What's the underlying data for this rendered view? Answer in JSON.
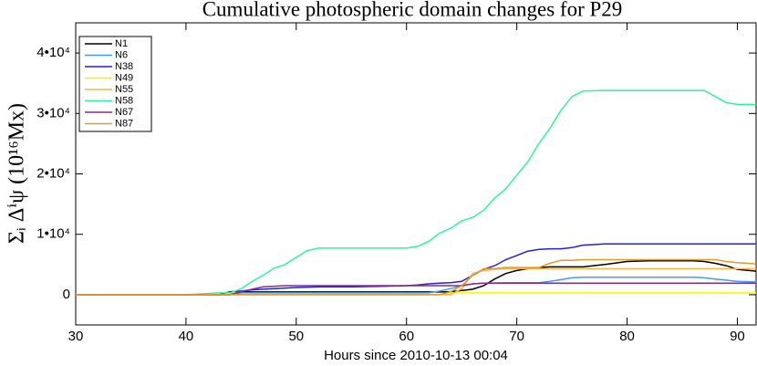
{
  "chart_data": {
    "type": "line",
    "title": "Cumulative photospheric domain changes for P29",
    "x_label": "Hours since 2010-10-13 00:04",
    "y_label": "Σᵢ Δⁱψ  (10¹⁶Mx)",
    "xlim": [
      30,
      91.7
    ],
    "ylim": [
      -5000,
      45000
    ],
    "xticks": [
      30,
      40,
      50,
      60,
      70,
      80,
      90
    ],
    "yticks": [
      {
        "value": 0,
        "label": "0"
      },
      {
        "value": 10000,
        "label": "1•10⁴"
      },
      {
        "value": 20000,
        "label": "2•10⁴"
      },
      {
        "value": 30000,
        "label": "3•10⁴"
      },
      {
        "value": 40000,
        "label": "4•10⁴"
      }
    ],
    "legend": "upper left",
    "x": [
      30,
      40,
      43,
      44,
      45,
      46,
      47,
      48,
      49,
      50,
      51,
      52,
      55,
      58,
      60,
      61,
      62,
      63,
      64,
      65,
      66,
      67,
      68,
      69,
      70,
      71,
      72,
      73,
      74,
      75,
      76,
      78,
      80,
      82,
      84,
      86,
      87,
      88,
      89,
      90,
      91.7
    ],
    "series": [
      {
        "name": "N1",
        "color": "#000000",
        "values": [
          0,
          0,
          0,
          0,
          500,
          450,
          450,
          450,
          450,
          450,
          450,
          450,
          450,
          450,
          450,
          450,
          450,
          450,
          500,
          700,
          900,
          1500,
          2600,
          3500,
          4000,
          4300,
          4500,
          4600,
          4600,
          4600,
          4600,
          5000,
          5500,
          5600,
          5600,
          5600,
          5500,
          5200,
          4800,
          4200,
          3900
        ]
      },
      {
        "name": "N6",
        "color": "#3a9cff",
        "values": [
          0,
          0,
          0,
          0,
          300,
          300,
          300,
          300,
          300,
          300,
          300,
          300,
          300,
          300,
          300,
          300,
          300,
          600,
          1000,
          1500,
          1800,
          1900,
          1950,
          2000,
          2000,
          2000,
          2000,
          2200,
          2500,
          2800,
          2900,
          2900,
          2900,
          2900,
          2900,
          2900,
          2800,
          2600,
          2400,
          2200,
          2100
        ]
      },
      {
        "name": "N38",
        "color": "#2020e0",
        "values": [
          0,
          0,
          0,
          500,
          600,
          800,
          900,
          1000,
          1100,
          1200,
          1250,
          1300,
          1300,
          1400,
          1500,
          1600,
          1800,
          1900,
          2000,
          2200,
          3200,
          4200,
          4800,
          5800,
          6500,
          7200,
          7500,
          7600,
          7600,
          7800,
          8200,
          8400,
          8400,
          8400,
          8400,
          8400,
          8400,
          8400,
          8400,
          8400,
          8400
        ]
      },
      {
        "name": "N49",
        "color": "#f5f500",
        "values": [
          0,
          0,
          0,
          0,
          0,
          0,
          0,
          0,
          0,
          0,
          0,
          0,
          0,
          0,
          0,
          0,
          0,
          0,
          300,
          300,
          300,
          300,
          300,
          300,
          300,
          300,
          300,
          300,
          300,
          300,
          300,
          300,
          300,
          300,
          300,
          300,
          300,
          300,
          300,
          300,
          300
        ]
      },
      {
        "name": "N55",
        "color": "#ffb347",
        "values": [
          0,
          0,
          0,
          0,
          0,
          0,
          0,
          0,
          0,
          0,
          0,
          0,
          0,
          0,
          0,
          0,
          0,
          0,
          0,
          1000,
          3500,
          4000,
          4200,
          4300,
          4300,
          4300,
          4300,
          4300,
          4300,
          4300,
          4300,
          4300,
          4300,
          4300,
          4300,
          4300,
          4300,
          4300,
          4300,
          4300,
          4300
        ]
      },
      {
        "name": "N58",
        "color": "#2ef59a",
        "values": [
          0,
          0,
          300,
          300,
          1000,
          2200,
          3200,
          4400,
          5000,
          6200,
          7300,
          7700,
          7700,
          7700,
          7700,
          8000,
          8800,
          10200,
          11000,
          12200,
          12800,
          14000,
          16000,
          17500,
          19800,
          22000,
          25000,
          27500,
          30500,
          32800,
          33700,
          33800,
          33800,
          33800,
          33800,
          33800,
          33800,
          32800,
          31800,
          31500,
          31500
        ]
      },
      {
        "name": "N67",
        "color": "#8a2a8a",
        "values": [
          0,
          0,
          0,
          0,
          500,
          900,
          1300,
          1400,
          1500,
          1500,
          1500,
          1500,
          1500,
          1500,
          1500,
          1500,
          1500,
          1500,
          1500,
          1500,
          1800,
          1900,
          1900,
          1900,
          1900,
          1900,
          1900,
          1900,
          1900,
          1900,
          1900,
          1900,
          1900,
          1900,
          1900,
          1900,
          1900,
          1900,
          1900,
          1900,
          1900
        ]
      },
      {
        "name": "N87",
        "color": "#e09a2a",
        "values": [
          0,
          0,
          0,
          0,
          0,
          0,
          0,
          0,
          0,
          0,
          0,
          0,
          0,
          0,
          0,
          0,
          0,
          0,
          500,
          1500,
          3200,
          4300,
          4300,
          4500,
          4500,
          4500,
          4500,
          5200,
          5700,
          5700,
          5800,
          5800,
          5800,
          5800,
          5800,
          5800,
          5800,
          5800,
          5500,
          5300,
          5100
        ]
      }
    ]
  }
}
